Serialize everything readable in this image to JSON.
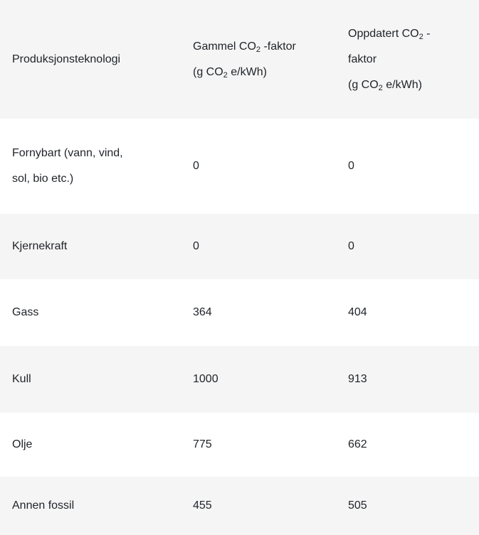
{
  "table": {
    "headers": {
      "technology": "Produksjonsteknologi",
      "old_factor": {
        "line1_pre": "Gammel CO",
        "line1_sub": "2",
        "line1_post": " -faktor",
        "line2_pre": "(g CO",
        "line2_sub": "2",
        "line2_post": " e/kWh)"
      },
      "new_factor": {
        "line1_pre": "Oppdatert CO",
        "line1_sub": "2",
        "line1_post": " -",
        "line2": "faktor",
        "line3_pre": "(g CO",
        "line3_sub": "2",
        "line3_post": " e/kWh)"
      }
    },
    "rows": [
      {
        "technology_line1": "Fornybart (vann, vind,",
        "technology_line2": "sol, bio etc.)",
        "old": "0",
        "new": "0"
      },
      {
        "technology": "Kjernekraft",
        "old": "0",
        "new": "0"
      },
      {
        "technology": "Gass",
        "old": "364",
        "new": "404"
      },
      {
        "technology": "Kull",
        "old": "1000",
        "new": "913"
      },
      {
        "technology": "Olje",
        "old": "775",
        "new": "662"
      },
      {
        "technology": "Annen fossil",
        "old": "455",
        "new": "505"
      }
    ]
  }
}
